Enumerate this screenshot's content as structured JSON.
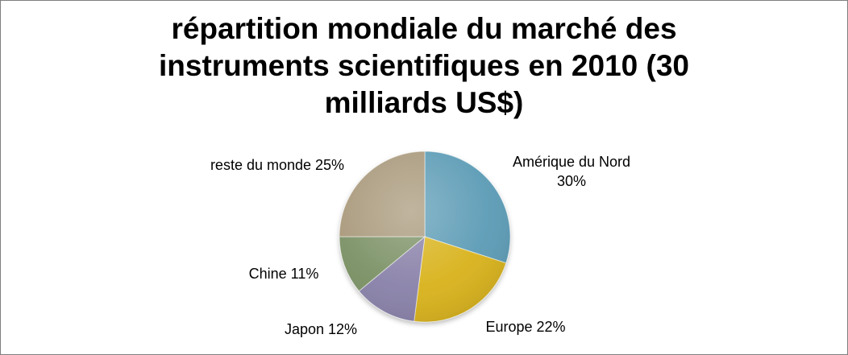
{
  "chart_data": {
    "type": "pie",
    "title": "répartition mondiale du marché des instruments scientifiques en 2010 (30 milliards US$)",
    "categories": [
      "Amérique du Nord",
      "Europe",
      "Japon",
      "Chine",
      "reste du monde"
    ],
    "values": [
      30,
      22,
      12,
      11,
      25
    ],
    "unit": "%",
    "labels": [
      [
        "Amérique du Nord",
        "30%"
      ],
      [
        "Europe 22%"
      ],
      [
        "Japon 12%"
      ],
      [
        "Chine 11%"
      ],
      [
        "reste du monde 25%"
      ]
    ],
    "colors": [
      "#5b9bb5",
      "#d8b21a",
      "#8880a8",
      "#7a9064",
      "#a8987a"
    ],
    "legend": "none",
    "start_angle_deg": 0,
    "direction": "clockwise"
  }
}
